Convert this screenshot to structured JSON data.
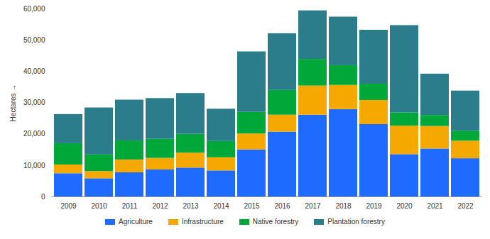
{
  "chart_data": {
    "type": "bar",
    "stacked": true,
    "grid": false,
    "legend": "bottom",
    "y_label": "Hectares",
    "categories": [
      "2009",
      "2010",
      "2011",
      "2012",
      "2013",
      "2014",
      "2015",
      "2016",
      "2017",
      "2018",
      "2019",
      "2020",
      "2021",
      "2022"
    ],
    "ylim": [
      0,
      60000
    ],
    "yticks": [
      0,
      {
        "value": 10000,
        "label": "10,000"
      },
      {
        "value": 20000,
        "label": "20,000"
      },
      {
        "value": 30000,
        "label": "30,000"
      },
      {
        "value": 40000,
        "label": "40,000"
      },
      {
        "value": 50000,
        "label": "50,000"
      },
      {
        "value": 60000,
        "label": "60,000"
      }
    ],
    "series": [
      {
        "name": "Agriculture",
        "color": "#1f6bff",
        "values": [
          7400,
          5800,
          7700,
          8600,
          9200,
          8300,
          15000,
          20700,
          26100,
          27900,
          23100,
          13500,
          15300,
          12200
        ]
      },
      {
        "name": "Infrastructure",
        "color": "#f5a800",
        "values": [
          2800,
          2300,
          4100,
          3700,
          4800,
          4200,
          5100,
          5400,
          9300,
          7700,
          7700,
          9100,
          7200,
          5600
        ]
      },
      {
        "name": "Native forestry",
        "color": "#00a83a",
        "values": [
          6800,
          5300,
          6100,
          6100,
          6000,
          5200,
          6900,
          7900,
          8500,
          6300,
          5200,
          4200,
          3500,
          3200
        ]
      },
      {
        "name": "Plantation forestry",
        "color": "#2b7d8c",
        "values": [
          9300,
          15000,
          13000,
          13000,
          13000,
          10300,
          19300,
          18100,
          15500,
          15500,
          17200,
          27900,
          13200,
          12800
        ]
      }
    ]
  }
}
